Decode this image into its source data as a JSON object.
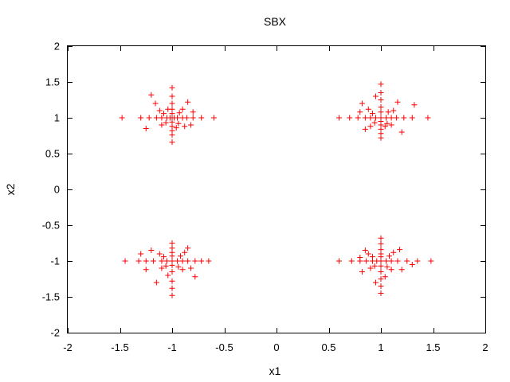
{
  "chart_data": {
    "type": "scatter",
    "title": "SBX",
    "xlabel": "x1",
    "ylabel": "x2",
    "xlim": [
      -2,
      2
    ],
    "ylim": [
      -2,
      2
    ],
    "xticks": [
      -2,
      -1.5,
      -1,
      -0.5,
      0,
      0.5,
      1,
      1.5,
      2
    ],
    "yticks": [
      -2,
      -1.5,
      -1,
      -0.5,
      0,
      0.5,
      1,
      1.5,
      2
    ],
    "x_tick_labels": [
      "-2",
      "-1.5",
      "-1",
      "-0.5",
      "0",
      "0.5",
      "1",
      "1.5",
      "2"
    ],
    "y_tick_labels": [
      "-2",
      "-1.5",
      "-1",
      "-0.5",
      "0",
      "0.5",
      "1",
      "1.5",
      "2"
    ],
    "grid": false,
    "marker": "+",
    "color": "#ff0000",
    "series": [
      {
        "points": [
          [
            -1,
            1
          ],
          [
            -1.48,
            1
          ],
          [
            -0.6,
            1
          ],
          [
            -1.3,
            1
          ],
          [
            -0.72,
            1
          ],
          [
            -1.22,
            1
          ],
          [
            -0.8,
            1
          ],
          [
            -1.15,
            1
          ],
          [
            -0.86,
            1
          ],
          [
            -1.1,
            1
          ],
          [
            -0.9,
            1
          ],
          [
            -1.05,
            1
          ],
          [
            -0.95,
            1
          ],
          [
            -1.02,
            1
          ],
          [
            -0.98,
            1
          ],
          [
            -1,
            1.42
          ],
          [
            -1,
            0.66
          ],
          [
            -1,
            1.3
          ],
          [
            -1,
            0.76
          ],
          [
            -1,
            1.2
          ],
          [
            -1,
            0.82
          ],
          [
            -1,
            1.12
          ],
          [
            -1,
            0.88
          ],
          [
            -1,
            1.06
          ],
          [
            -1,
            0.94
          ],
          [
            -1.08,
            1.06
          ],
          [
            -0.93,
            1.07
          ],
          [
            -1.06,
            0.93
          ],
          [
            -0.94,
            0.92
          ],
          [
            -1.12,
            1.1
          ],
          [
            -0.9,
            1.12
          ],
          [
            -1.1,
            0.9
          ],
          [
            -0.88,
            0.88
          ],
          [
            -1.2,
            1.32
          ],
          [
            -0.85,
            1.22
          ],
          [
            -1.25,
            0.85
          ],
          [
            -0.82,
            0.9
          ],
          [
            -1.16,
            1.2
          ],
          [
            -0.8,
            1.08
          ],
          [
            -1.04,
            1.12
          ],
          [
            -0.96,
            0.86
          ],
          [
            1,
            1
          ],
          [
            0.6,
            1
          ],
          [
            1.45,
            1
          ],
          [
            0.7,
            1
          ],
          [
            1.3,
            1
          ],
          [
            0.78,
            1
          ],
          [
            1.22,
            1
          ],
          [
            0.85,
            1
          ],
          [
            1.15,
            1
          ],
          [
            0.9,
            1
          ],
          [
            1.1,
            1
          ],
          [
            0.95,
            1
          ],
          [
            1.05,
            1
          ],
          [
            1,
            1.47
          ],
          [
            1,
            0.72
          ],
          [
            1,
            1.35
          ],
          [
            1,
            0.78
          ],
          [
            1,
            1.25
          ],
          [
            1,
            0.84
          ],
          [
            1,
            1.15
          ],
          [
            1,
            0.9
          ],
          [
            1,
            1.08
          ],
          [
            1,
            0.95
          ],
          [
            0.92,
            1.06
          ],
          [
            1.07,
            1.08
          ],
          [
            0.94,
            0.93
          ],
          [
            1.06,
            0.92
          ],
          [
            0.88,
            1.12
          ],
          [
            1.12,
            1.1
          ],
          [
            0.9,
            0.88
          ],
          [
            1.1,
            0.9
          ],
          [
            0.82,
            1.2
          ],
          [
            1.32,
            1.18
          ],
          [
            0.85,
            0.84
          ],
          [
            1.2,
            0.8
          ],
          [
            0.95,
            1.3
          ],
          [
            1.16,
            1.22
          ],
          [
            1.04,
            0.88
          ],
          [
            0.8,
            1.08
          ],
          [
            -1,
            -1
          ],
          [
            -1.45,
            -1
          ],
          [
            -0.65,
            -1
          ],
          [
            -1.32,
            -1
          ],
          [
            -0.72,
            -1
          ],
          [
            -1.25,
            -1
          ],
          [
            -0.78,
            -1
          ],
          [
            -1.18,
            -1
          ],
          [
            -0.85,
            -1
          ],
          [
            -1.1,
            -1
          ],
          [
            -0.9,
            -1
          ],
          [
            -1.05,
            -1
          ],
          [
            -0.95,
            -1
          ],
          [
            -1,
            -0.75
          ],
          [
            -1,
            -1.48
          ],
          [
            -1,
            -0.82
          ],
          [
            -1,
            -1.38
          ],
          [
            -1,
            -0.88
          ],
          [
            -1,
            -1.28
          ],
          [
            -1,
            -0.93
          ],
          [
            -1,
            -1.15
          ],
          [
            -1,
            -1.06
          ],
          [
            -1.08,
            -0.94
          ],
          [
            -0.92,
            -0.93
          ],
          [
            -1.06,
            -1.07
          ],
          [
            -0.94,
            -1.08
          ],
          [
            -1.12,
            -0.9
          ],
          [
            -0.88,
            -0.88
          ],
          [
            -1.1,
            -1.1
          ],
          [
            -0.9,
            -1.12
          ],
          [
            -1.3,
            -0.9
          ],
          [
            -1.25,
            -1.12
          ],
          [
            -0.82,
            -1.1
          ],
          [
            -0.78,
            -1.22
          ],
          [
            -1.15,
            -1.3
          ],
          [
            -0.85,
            -0.82
          ],
          [
            -1.2,
            -0.85
          ],
          [
            -1.04,
            -1.2
          ],
          [
            1,
            -1
          ],
          [
            0.6,
            -1
          ],
          [
            1.48,
            -1
          ],
          [
            0.72,
            -1
          ],
          [
            1.35,
            -1
          ],
          [
            0.8,
            -1
          ],
          [
            1.25,
            -1
          ],
          [
            0.86,
            -1
          ],
          [
            1.16,
            -1
          ],
          [
            0.92,
            -1
          ],
          [
            1.1,
            -1
          ],
          [
            0.96,
            -1
          ],
          [
            1.05,
            -1
          ],
          [
            1,
            -0.68
          ],
          [
            1,
            -1.45
          ],
          [
            1,
            -0.76
          ],
          [
            1,
            -1.35
          ],
          [
            1,
            -0.84
          ],
          [
            1,
            -1.25
          ],
          [
            1,
            -0.9
          ],
          [
            1,
            -1.15
          ],
          [
            1,
            -1.07
          ],
          [
            1,
            -0.94
          ],
          [
            0.92,
            -0.94
          ],
          [
            1.08,
            -0.93
          ],
          [
            0.94,
            -1.07
          ],
          [
            1.06,
            -1.08
          ],
          [
            0.88,
            -0.9
          ],
          [
            1.12,
            -0.88
          ],
          [
            0.9,
            -1.1
          ],
          [
            1.1,
            -1.12
          ],
          [
            0.85,
            -0.85
          ],
          [
            1.18,
            -0.84
          ],
          [
            0.82,
            -1.15
          ],
          [
            1.3,
            -1.05
          ],
          [
            0.95,
            -1.3
          ],
          [
            1.04,
            -1.22
          ],
          [
            1.2,
            -1.12
          ],
          [
            0.8,
            -0.95
          ]
        ]
      }
    ]
  }
}
